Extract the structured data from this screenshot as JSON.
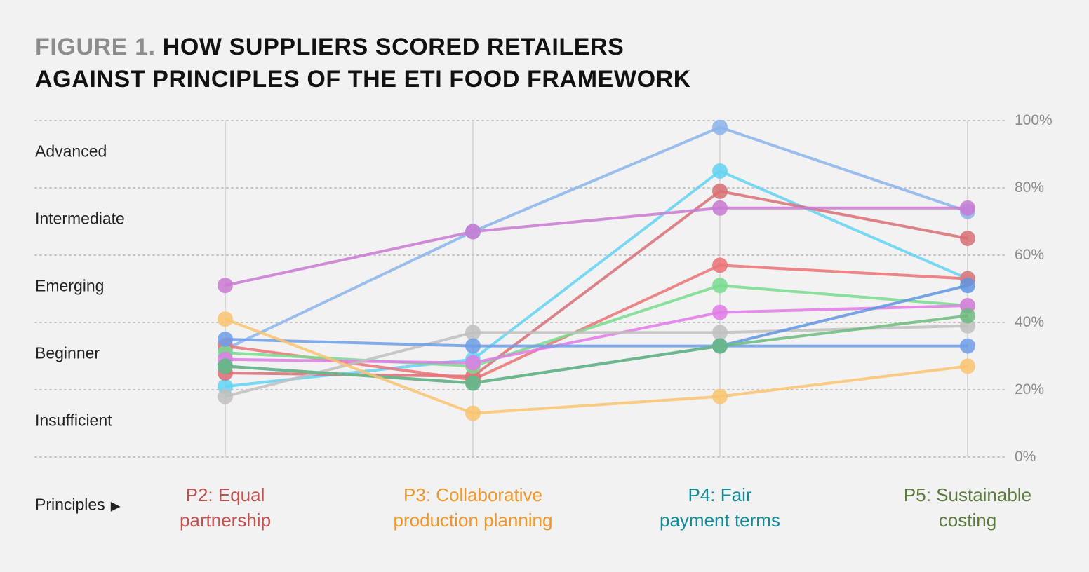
{
  "figure": {
    "prefix": "FIGURE 1.",
    "title_line1": "HOW SUPPLIERS SCORED RETAILERS",
    "title_line2": "AGAINST PRINCIPLES OF THE ETI FOOD FRAMEWORK"
  },
  "levels": [
    "Advanced",
    "Intermediate",
    "Emerging",
    "Beginner",
    "Insufficient"
  ],
  "principles_label": "Principles",
  "principles_arrow": "▶",
  "y_ticks": [
    "100%",
    "80%",
    "60%",
    "40%",
    "20%",
    "0%"
  ],
  "categories": [
    {
      "line1": "P2: Equal",
      "line2": "partnership",
      "color": "#c1504f"
    },
    {
      "line1": "P3: Collaborative",
      "line2": "production planning",
      "color": "#f0962c"
    },
    {
      "line1": "P4: Fair",
      "line2": "payment terms",
      "color": "#138a98"
    },
    {
      "line1": "P5: Sustainable",
      "line2": "costing",
      "color": "#5b7b3d"
    }
  ],
  "chart_data": {
    "type": "line",
    "categories": [
      "P2: Equal partnership",
      "P3: Collaborative production planning",
      "P4: Fair payment terms",
      "P5: Sustainable costing"
    ],
    "ylim": [
      0,
      100
    ],
    "y_unit": "%",
    "grid": true,
    "series": [
      {
        "color": "#8ab4ec",
        "values": [
          32,
          67,
          98,
          73
        ]
      },
      {
        "color": "#63d3f3",
        "values": [
          21,
          29,
          85,
          53
        ]
      },
      {
        "color": "#d96f74",
        "values": [
          25,
          24,
          79,
          65
        ]
      },
      {
        "color": "#c97ad1",
        "values": [
          51,
          67,
          74,
          74
        ]
      },
      {
        "color": "#ec7274",
        "values": [
          33,
          23,
          57,
          53
        ]
      },
      {
        "color": "#78dc8e",
        "values": [
          31,
          27,
          51,
          45
        ]
      },
      {
        "color": "#e07ae6",
        "values": [
          29,
          28,
          43,
          45
        ]
      },
      {
        "color": "#c0c0c0",
        "values": [
          18,
          37,
          37,
          39
        ]
      },
      {
        "color": "#6d9ee6",
        "values": [
          35,
          33,
          33,
          33
        ]
      },
      {
        "color": "#5f95e2",
        "values": [
          27,
          22,
          33,
          51
        ]
      },
      {
        "color": "#6bbb7c",
        "values": [
          27,
          22,
          33,
          42
        ]
      },
      {
        "color": "#fac46e",
        "values": [
          41,
          13,
          18,
          27
        ]
      }
    ]
  }
}
